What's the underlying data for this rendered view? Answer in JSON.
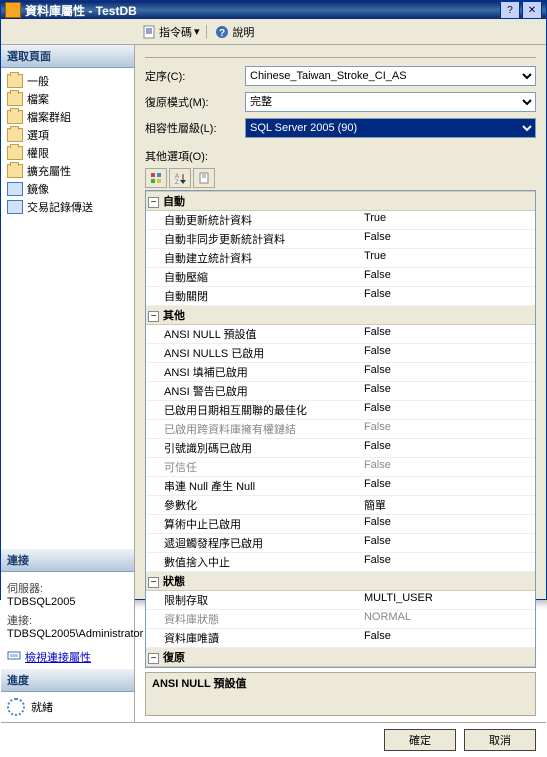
{
  "window": {
    "title": "資料庫屬性 - TestDB"
  },
  "toolbar": {
    "script_label": "指令碼",
    "help_label": "說明"
  },
  "nav": {
    "header": "選取頁面",
    "items": [
      {
        "label": "一般"
      },
      {
        "label": "檔案"
      },
      {
        "label": "檔案群組"
      },
      {
        "label": "選項"
      },
      {
        "label": "權限"
      },
      {
        "label": "擴充屬性"
      },
      {
        "label": "鏡像"
      },
      {
        "label": "交易記錄傳送"
      }
    ]
  },
  "connection": {
    "header": "連接",
    "server_label": "伺服器:",
    "server_val": "TDBSQL2005",
    "conn_label": "連接:",
    "conn_val": "TDBSQL2005\\Administrator",
    "view_link": "檢視連接屬性"
  },
  "progress": {
    "header": "進度",
    "label": "就緒"
  },
  "form": {
    "collation_label": "定序(C):",
    "collation_val": "Chinese_Taiwan_Stroke_CI_AS",
    "recovery_label": "復原模式(M):",
    "recovery_val": "完整",
    "compat_label": "相容性層級(L):",
    "compat_val": "SQL Server 2005 (90)",
    "other_label": "其他選項(O):"
  },
  "groups": [
    {
      "title": "自動",
      "rows": [
        {
          "name": "自動更新統計資料",
          "value": "True"
        },
        {
          "name": "自動非同步更新統計資料",
          "value": "False"
        },
        {
          "name": "自動建立統計資料",
          "value": "True"
        },
        {
          "name": "自動壓縮",
          "value": "False"
        },
        {
          "name": "自動關閉",
          "value": "False"
        }
      ]
    },
    {
      "title": "其他",
      "rows": [
        {
          "name": "ANSI NULL 預設值",
          "value": "False"
        },
        {
          "name": "ANSI NULLS 已啟用",
          "value": "False"
        },
        {
          "name": "ANSI 填補已啟用",
          "value": "False"
        },
        {
          "name": "ANSI 警告已啟用",
          "value": "False"
        },
        {
          "name": "已啟用日期相互關聯的最佳化",
          "value": "False"
        },
        {
          "name": "已啟用跨資料庫擁有權鏈結",
          "value": "False",
          "dim": true
        },
        {
          "name": "引號識別碼已啟用",
          "value": "False"
        },
        {
          "name": "可信任",
          "value": "False",
          "dim": true
        },
        {
          "name": "串連 Null 產生 Null",
          "value": "False"
        },
        {
          "name": "參數化",
          "value": "簡單"
        },
        {
          "name": "算術中止已啟用",
          "value": "False"
        },
        {
          "name": "遞迴觸發程序已啟用",
          "value": "False"
        },
        {
          "name": "數值捨入中止",
          "value": "False"
        }
      ]
    },
    {
      "title": "狀態",
      "rows": [
        {
          "name": "限制存取",
          "value": "MULTI_USER"
        },
        {
          "name": "資料庫狀態",
          "value": "NORMAL",
          "dim": true
        },
        {
          "name": "資料庫唯讀",
          "value": "False"
        }
      ]
    },
    {
      "title": "復原",
      "rows": []
    }
  ],
  "info": {
    "title": "ANSI NULL 預設值"
  },
  "buttons": {
    "ok": "確定",
    "cancel": "取消"
  }
}
